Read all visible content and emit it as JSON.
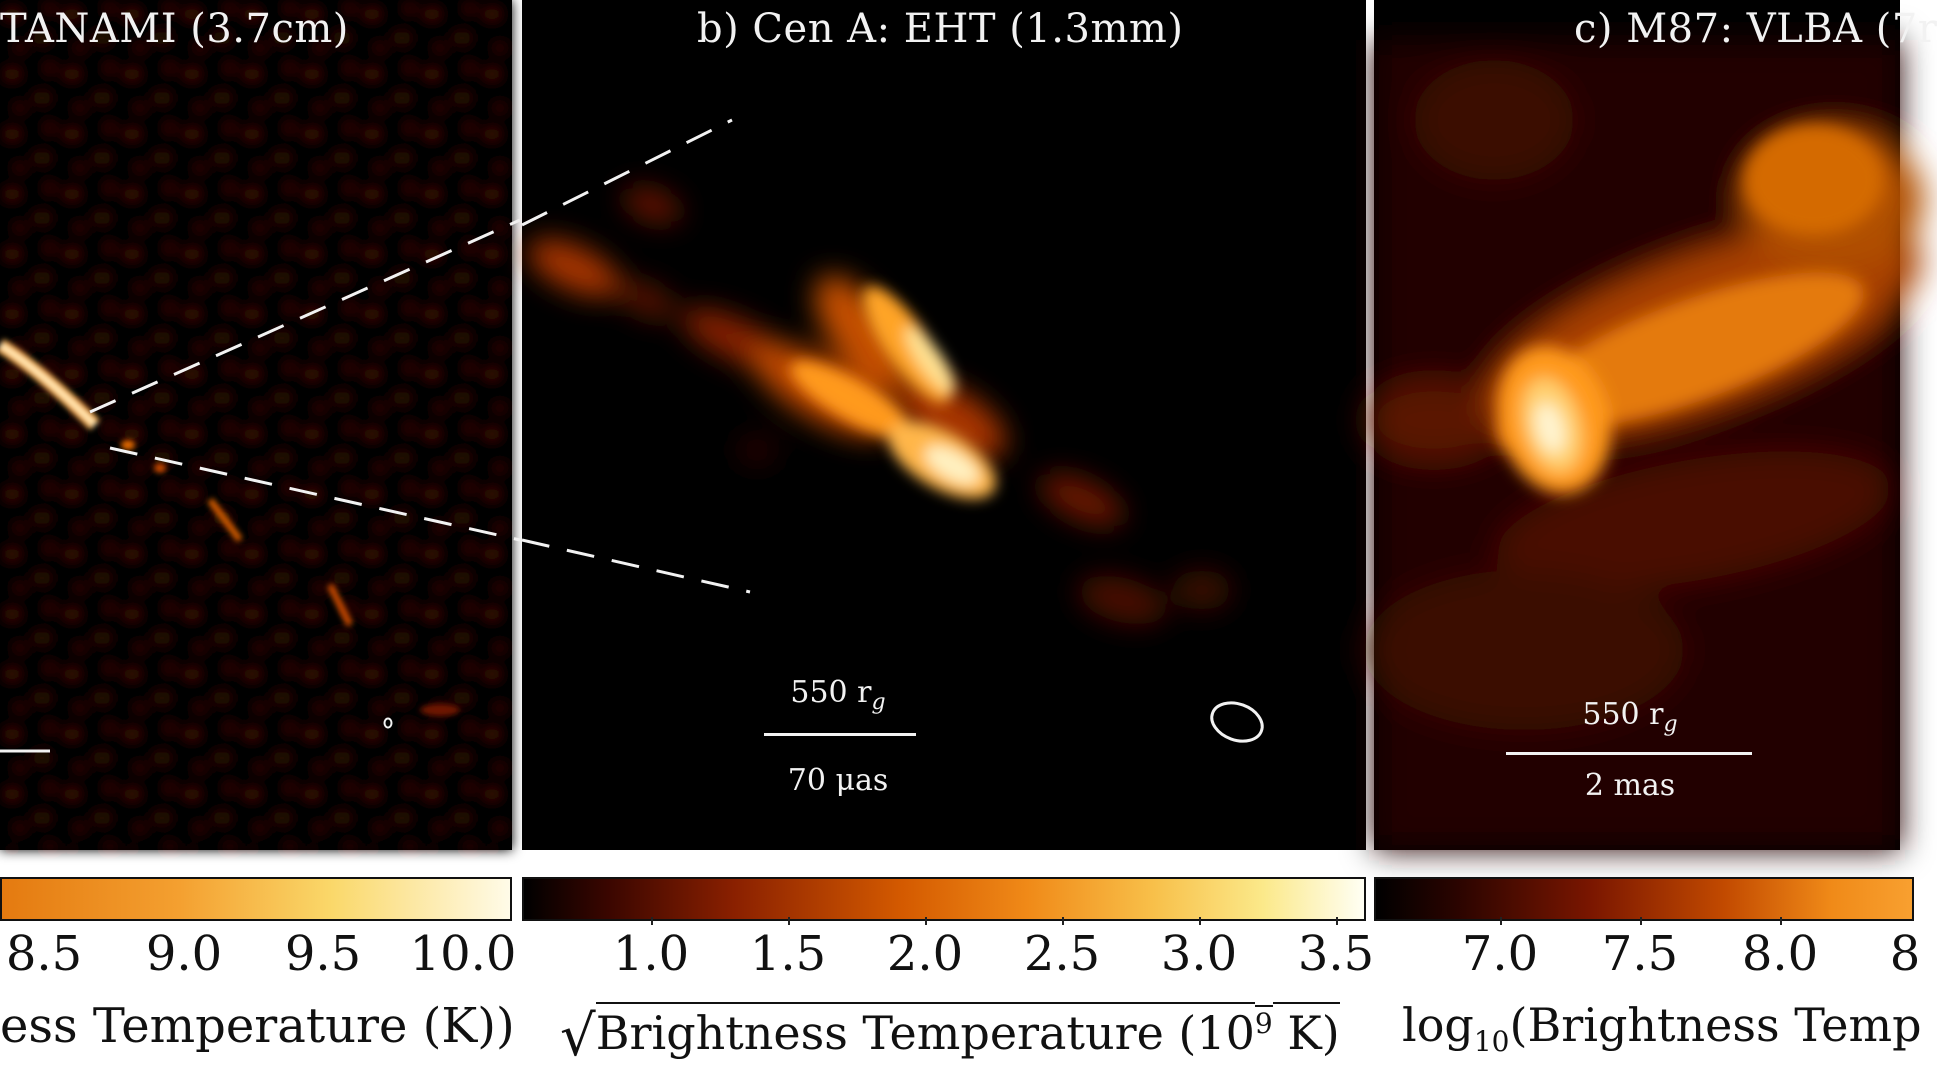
{
  "panels": {
    "a": {
      "title": "TANAMI (3.7cm)"
    },
    "b": {
      "title": "b) Cen A: EHT (1.3mm)",
      "scale_top": "550 r",
      "scale_top_sub": "g",
      "scale_bottom": "70 μas"
    },
    "c": {
      "title": "c) M87: VLBA (7r",
      "scale_top": "550 r",
      "scale_top_sub": "g",
      "scale_bottom": "2 mas"
    }
  },
  "colorbars": {
    "a": {
      "ticks": [
        "8.5",
        "9.0",
        "9.5",
        "10.0"
      ],
      "label": "ess Temperature (K))"
    },
    "b": {
      "ticks": [
        "1.0",
        "1.5",
        "2.0",
        "2.5",
        "3.0",
        "3.5"
      ],
      "label_sqrt": "√",
      "label": "Brightness Temperature (10",
      "label_sup": "9",
      "label_end": " K)"
    },
    "c": {
      "ticks": [
        "7.0",
        "7.5",
        "8.0",
        "8"
      ],
      "label_pre": "log",
      "label_sub": "10",
      "label": "(Brightness Temp"
    }
  },
  "colors": {
    "background": "#000000",
    "accent": "#ff9a1a",
    "text_on_image": "#f2f2f2"
  }
}
